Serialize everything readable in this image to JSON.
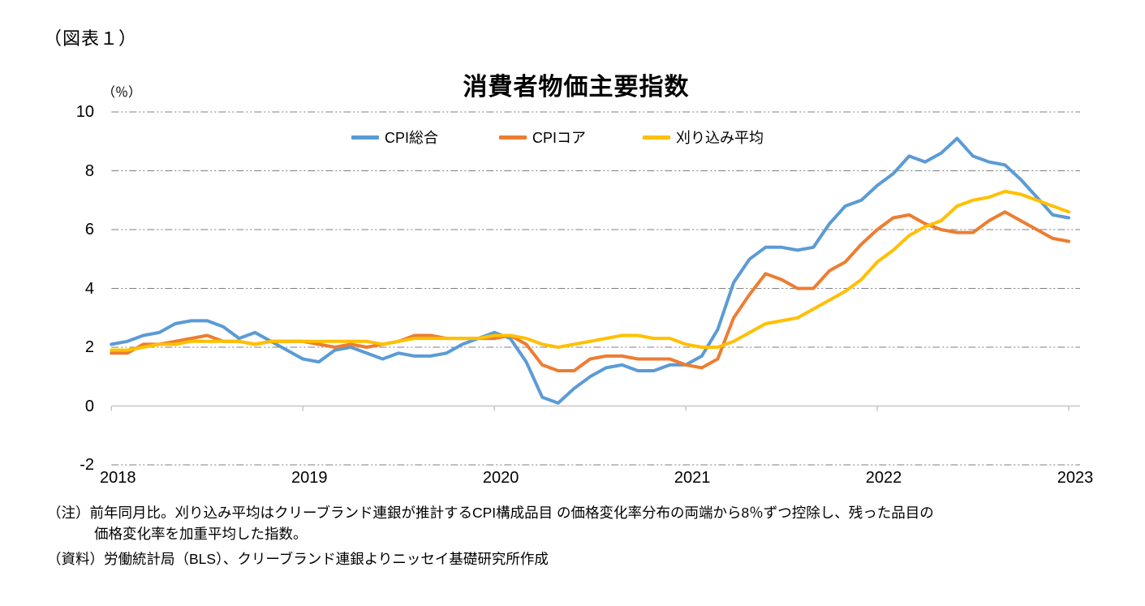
{
  "figure_label": "（図表１）",
  "notes": {
    "line1": "（注）前年同月比。刈り込み平均はクリーブランド連銀が推計するCPI構成品目 の価格変化率分布の両端から8％ずつ控除し、残った品目の",
    "line2": "価格変化率を加重平均した指数。",
    "source": "（資料）労働統計局（BLS）、クリーブランド連銀よりニッセイ基礎研究所作成"
  },
  "chart_data": {
    "type": "line",
    "title": "消費者物価主要指数",
    "unit_label": "（％）",
    "xlabel": "",
    "ylabel": "%",
    "ylim": [
      -2,
      10
    ],
    "y_ticks": [
      10,
      8,
      6,
      4,
      2,
      0,
      -2
    ],
    "x_tick_labels": [
      "2018",
      "2019",
      "2020",
      "2021",
      "2022",
      "2023"
    ],
    "x_start": "2018-01",
    "x_end": "2023-01",
    "frequency": "monthly",
    "grid": "horizontal dash-dot, zero axis solid",
    "legend_position": "top",
    "series": [
      {
        "name": "CPI総合",
        "color": "#5B9BD5",
        "values": [
          2.1,
          2.2,
          2.4,
          2.5,
          2.8,
          2.9,
          2.9,
          2.7,
          2.3,
          2.5,
          2.2,
          1.9,
          1.6,
          1.5,
          1.9,
          2.0,
          1.8,
          1.6,
          1.8,
          1.7,
          1.7,
          1.8,
          2.1,
          2.3,
          2.5,
          2.3,
          1.5,
          0.3,
          0.1,
          0.6,
          1.0,
          1.3,
          1.4,
          1.2,
          1.2,
          1.4,
          1.4,
          1.7,
          2.6,
          4.2,
          5.0,
          5.4,
          5.4,
          5.3,
          5.4,
          6.2,
          6.8,
          7.0,
          7.5,
          7.9,
          8.5,
          8.3,
          8.6,
          9.1,
          8.5,
          8.3,
          8.2,
          7.7,
          7.1,
          6.5,
          6.4
        ]
      },
      {
        "name": "CPIコア",
        "color": "#ED7D31",
        "values": [
          1.8,
          1.8,
          2.1,
          2.1,
          2.2,
          2.3,
          2.4,
          2.2,
          2.2,
          2.1,
          2.2,
          2.2,
          2.2,
          2.1,
          2.0,
          2.1,
          2.0,
          2.1,
          2.2,
          2.4,
          2.4,
          2.3,
          2.3,
          2.3,
          2.3,
          2.4,
          2.1,
          1.4,
          1.2,
          1.2,
          1.6,
          1.7,
          1.7,
          1.6,
          1.6,
          1.6,
          1.4,
          1.3,
          1.6,
          3.0,
          3.8,
          4.5,
          4.3,
          4.0,
          4.0,
          4.6,
          4.9,
          5.5,
          6.0,
          6.4,
          6.5,
          6.2,
          6.0,
          5.9,
          5.9,
          6.3,
          6.6,
          6.3,
          6.0,
          5.7,
          5.6
        ]
      },
      {
        "name": "刈り込み平均",
        "color": "#FFC000",
        "values": [
          1.9,
          1.9,
          2.0,
          2.1,
          2.1,
          2.2,
          2.2,
          2.2,
          2.2,
          2.1,
          2.2,
          2.2,
          2.2,
          2.2,
          2.2,
          2.2,
          2.2,
          2.1,
          2.2,
          2.3,
          2.3,
          2.3,
          2.3,
          2.3,
          2.4,
          2.4,
          2.3,
          2.1,
          2.0,
          2.1,
          2.2,
          2.3,
          2.4,
          2.4,
          2.3,
          2.3,
          2.1,
          2.0,
          2.0,
          2.2,
          2.5,
          2.8,
          2.9,
          3.0,
          3.3,
          3.6,
          3.9,
          4.3,
          4.9,
          5.3,
          5.8,
          6.1,
          6.3,
          6.8,
          7.0,
          7.1,
          7.3,
          7.2,
          7.0,
          6.8,
          6.6
        ]
      }
    ]
  }
}
